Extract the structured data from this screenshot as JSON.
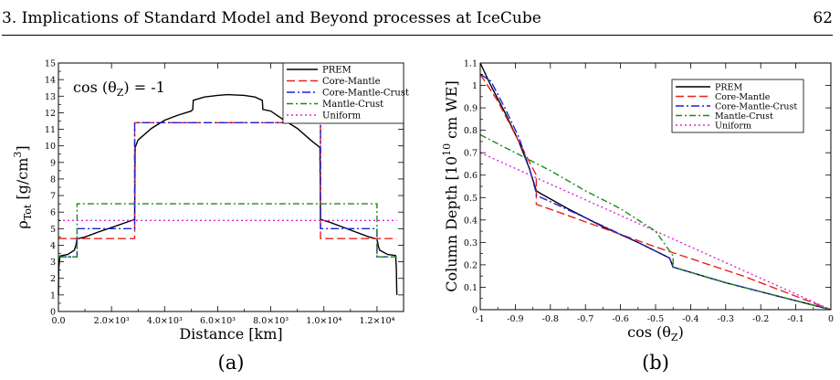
{
  "header": {
    "title": "3. Implications of Standard Model and Beyond processes at IceCube",
    "page_number": "62"
  },
  "captions": {
    "a": "(a)",
    "b": "(b)"
  },
  "colors": {
    "PREM": "#000000",
    "Core-Mantle": "#e8211a",
    "Core-Mantle-Crust": "#1f1fd8",
    "Mantle-Crust": "#1e8a1e",
    "Uniform": "#e020e0"
  },
  "chart_data": [
    {
      "type": "line",
      "annotation": "cos (θZ) = -1",
      "xlabel": "Distance [km]",
      "ylabel": "ρTot [g/cm3]",
      "xlim": [
        0,
        13000
      ],
      "ylim": [
        0,
        15
      ],
      "x_ticks": [
        0,
        2000,
        4000,
        6000,
        8000,
        10000,
        12000
      ],
      "x_tick_labels": [
        "0.0",
        "2.0×10³",
        "4.0×10³",
        "6.0×10³",
        "8.0×10³",
        "1.0×10⁴",
        "1.2×10⁴"
      ],
      "y_ticks": [
        0,
        1,
        2,
        3,
        4,
        5,
        6,
        7,
        8,
        9,
        10,
        11,
        12,
        13,
        14,
        15
      ],
      "y_tick_labels": [
        "0",
        "1",
        "2",
        "3",
        "4",
        "5",
        "6",
        "7",
        "8",
        "9",
        "10",
        "11",
        "12",
        "13",
        "14",
        "15"
      ],
      "legend_position": "top-right",
      "series": [
        {
          "name": "PREM",
          "x": [
            0,
            10,
            30,
            60,
            150,
            350,
            600,
            650,
            700,
            1000,
            1500,
            2000,
            2500,
            2870,
            2890,
            3000,
            3500,
            4000,
            4500,
            5000,
            5060,
            5080,
            5500,
            6000,
            6372,
            7000,
            7400,
            7680,
            7700,
            8000,
            8500,
            9000,
            9500,
            9850,
            9870,
            10200,
            10700,
            11200,
            11700,
            12000,
            12050,
            12100,
            12400,
            12700,
            12730,
            12744
          ],
          "y": [
            1.0,
            2.6,
            2.9,
            3.35,
            3.38,
            3.44,
            3.7,
            3.95,
            4.38,
            4.5,
            4.8,
            5.07,
            5.35,
            5.56,
            9.9,
            10.35,
            11.05,
            11.55,
            11.85,
            12.1,
            12.2,
            12.75,
            12.95,
            13.05,
            13.09,
            13.05,
            12.95,
            12.75,
            12.2,
            12.1,
            11.55,
            11.05,
            10.35,
            9.9,
            5.56,
            5.4,
            5.1,
            4.8,
            4.5,
            4.38,
            3.95,
            3.7,
            3.44,
            3.38,
            2.6,
            1.0
          ]
        },
        {
          "name": "Core-Mantle",
          "x": [
            0,
            2870,
            2870,
            9870,
            9870,
            12744
          ],
          "y": [
            4.4,
            4.4,
            11.4,
            11.4,
            4.4,
            4.4
          ]
        },
        {
          "name": "Core-Mantle-Crust",
          "x": [
            0,
            700,
            700,
            2870,
            2870,
            9870,
            9870,
            12000,
            12000,
            12744
          ],
          "y": [
            3.3,
            3.3,
            5.0,
            5.0,
            11.4,
            11.4,
            5.0,
            5.0,
            3.3,
            3.3
          ]
        },
        {
          "name": "Mantle-Crust",
          "x": [
            0,
            700,
            700,
            12000,
            12000,
            12744
          ],
          "y": [
            3.3,
            3.3,
            6.5,
            6.5,
            3.3,
            3.3
          ]
        },
        {
          "name": "Uniform",
          "x": [
            0,
            12744
          ],
          "y": [
            5.5,
            5.5
          ]
        }
      ]
    },
    {
      "type": "line",
      "xlabel": "cos (θZ)",
      "ylabel": "Column Depth [10¹⁰ cm WE]",
      "xlim": [
        -1,
        0
      ],
      "ylim": [
        0,
        1.1
      ],
      "x_ticks": [
        -1,
        -0.9,
        -0.8,
        -0.7,
        -0.6,
        -0.5,
        -0.4,
        -0.3,
        -0.2,
        -0.1,
        0
      ],
      "x_tick_labels": [
        "-1",
        "-0.9",
        "-0.8",
        "-0.7",
        "-0.6",
        "-0.5",
        "-0.4",
        "-0.3",
        "-0.2",
        "-0.1",
        "0"
      ],
      "y_ticks": [
        0,
        0.1,
        0.2,
        0.3,
        0.4,
        0.5,
        0.6,
        0.7,
        0.8,
        0.9,
        1.0,
        1.1
      ],
      "y_tick_labels": [
        "0",
        "0.1",
        "0.2",
        "0.3",
        "0.4",
        "0.5",
        "0.6",
        "0.7",
        "0.8",
        "0.9",
        "1",
        "1.1"
      ],
      "legend_position": "top-right",
      "series": [
        {
          "name": "PREM",
          "x": [
            -1,
            -0.97,
            -0.93,
            -0.89,
            -0.86,
            -0.84,
            -0.83,
            -0.75,
            -0.65,
            -0.55,
            -0.46,
            -0.45,
            -0.3,
            -0.15,
            0
          ],
          "y": [
            1.1,
            1.0,
            0.88,
            0.75,
            0.63,
            0.53,
            0.52,
            0.45,
            0.37,
            0.3,
            0.23,
            0.19,
            0.12,
            0.06,
            0
          ]
        },
        {
          "name": "Core-Mantle",
          "x": [
            -1,
            -0.95,
            -0.9,
            -0.84,
            -0.84,
            -0.5,
            -0.25,
            0
          ],
          "y": [
            1.05,
            0.93,
            0.78,
            0.6,
            0.47,
            0.28,
            0.15,
            0
          ]
        },
        {
          "name": "Core-Mantle-Crust",
          "x": [
            -1,
            -0.97,
            -0.93,
            -0.89,
            -0.86,
            -0.84,
            -0.84,
            -0.7,
            -0.55,
            -0.46,
            -0.45,
            -0.3,
            -0.15,
            0
          ],
          "y": [
            1.05,
            1.02,
            0.9,
            0.77,
            0.63,
            0.52,
            0.51,
            0.41,
            0.3,
            0.23,
            0.19,
            0.12,
            0.06,
            0
          ]
        },
        {
          "name": "Mantle-Crust",
          "x": [
            -1,
            -0.9,
            -0.8,
            -0.7,
            -0.6,
            -0.5,
            -0.45,
            -0.45,
            -0.3,
            -0.15,
            0
          ],
          "y": [
            0.78,
            0.7,
            0.62,
            0.53,
            0.45,
            0.35,
            0.24,
            0.19,
            0.12,
            0.06,
            0
          ]
        },
        {
          "name": "Uniform",
          "x": [
            -1,
            0
          ],
          "y": [
            0.7,
            0
          ]
        }
      ]
    }
  ]
}
